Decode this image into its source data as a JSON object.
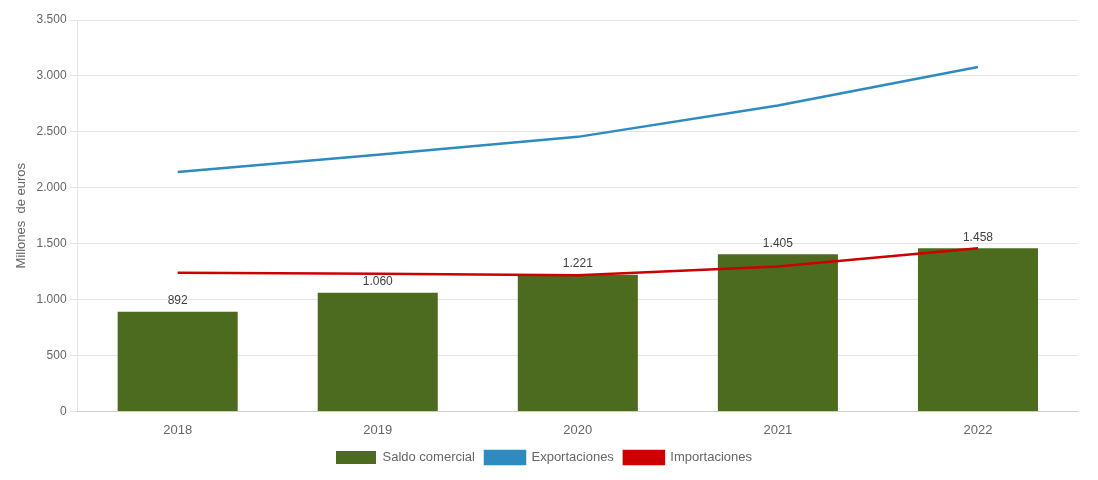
{
  "chart_data": {
    "type": "bar",
    "ylabel": "Millones  de euros",
    "categories": [
      "2018",
      "2019",
      "2020",
      "2021",
      "2022"
    ],
    "series": [
      {
        "name": "Saldo comercial",
        "type": "bar",
        "color": "#4d6b1e",
        "values": [
          892,
          1060,
          1221,
          1405,
          1458
        ],
        "value_labels": [
          "892",
          "1.060",
          "1.221",
          "1.405",
          "1.458"
        ],
        "data_labels": true
      },
      {
        "name": "Exportaciones",
        "type": "line",
        "color": "#2e8bc0",
        "values": [
          2140,
          2295,
          2455,
          2735,
          3080
        ]
      },
      {
        "name": "Importaciones",
        "type": "line",
        "color": "#cc0000",
        "values": [
          1240,
          1230,
          1218,
          1295,
          1458
        ]
      }
    ],
    "ylim": [
      0,
      3500
    ],
    "yticks": [
      0,
      500,
      {
        "value": 1000,
        "label": "1.000"
      },
      {
        "value": 1500,
        "label": "1.500"
      },
      {
        "value": 2000,
        "label": "2.000"
      },
      {
        "value": 2500,
        "label": "2.500"
      },
      {
        "value": 3000,
        "label": "3.000"
      },
      {
        "value": 3500,
        "label": "3.500"
      }
    ],
    "grid": "y",
    "legend": "bottom"
  }
}
